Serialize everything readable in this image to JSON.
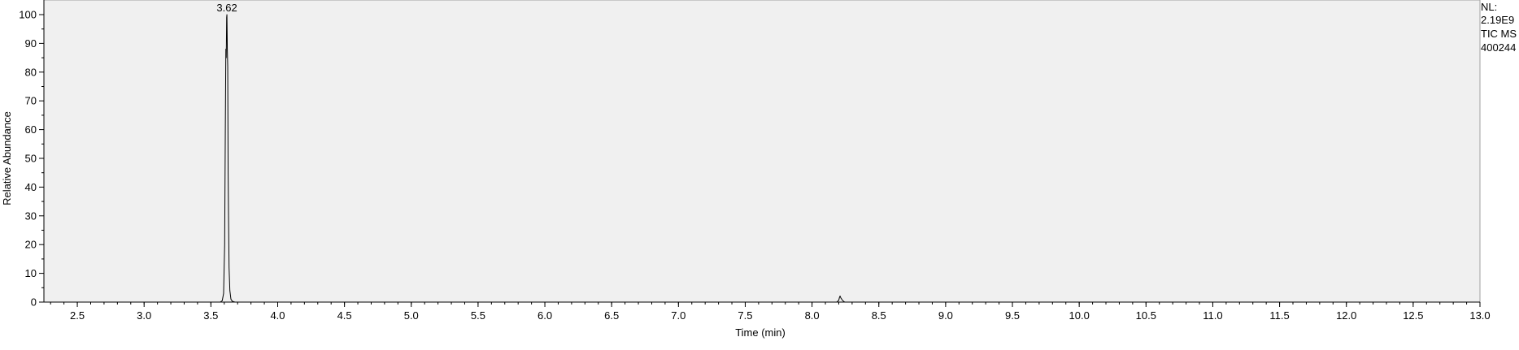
{
  "chart_data": {
    "type": "line",
    "title": "",
    "xlabel": "Time (min)",
    "ylabel": "Relative Abundance",
    "xlim": [
      2.25,
      13.0
    ],
    "ylim": [
      0,
      100
    ],
    "x_ticks": [
      2.5,
      3.0,
      3.5,
      4.0,
      4.5,
      5.0,
      5.5,
      6.0,
      6.5,
      7.0,
      7.5,
      8.0,
      8.5,
      9.0,
      9.5,
      10.0,
      10.5,
      11.0,
      11.5,
      12.0,
      12.5,
      13.0
    ],
    "x_tick_labels": [
      "2.5",
      "3.0",
      "3.5",
      "4.0",
      "4.5",
      "5.0",
      "5.5",
      "6.0",
      "6.5",
      "7.0",
      "7.5",
      "8.0",
      "8.5",
      "9.0",
      "9.5",
      "10.0",
      "10.5",
      "11.0",
      "11.5",
      "12.0",
      "12.5",
      "13.0"
    ],
    "y_ticks": [
      0,
      10,
      20,
      30,
      40,
      50,
      60,
      70,
      80,
      90,
      100
    ],
    "y_tick_labels": [
      "0",
      "10",
      "20",
      "30",
      "40",
      "50",
      "60",
      "70",
      "80",
      "90",
      "100"
    ],
    "grid": false,
    "colors": {
      "plot_background": "#f0f0f0",
      "trace": "#000000"
    },
    "series": [
      {
        "x": [
          2.25,
          3.57,
          3.585,
          3.595,
          3.603,
          3.608,
          3.612,
          3.615,
          3.618,
          3.62,
          3.623,
          3.626,
          3.629,
          3.632,
          3.636,
          3.642,
          3.65,
          3.66,
          3.68,
          8.17,
          8.185,
          8.2,
          8.205,
          8.21,
          8.215,
          8.23,
          8.245,
          13.0
        ],
        "y": [
          0,
          0,
          0.5,
          3,
          20,
          60,
          88,
          85,
          99,
          100,
          88,
          82,
          45,
          30,
          12,
          4,
          1,
          0.3,
          0,
          0,
          0,
          0.6,
          1.6,
          2.1,
          1.5,
          0.5,
          0,
          0
        ]
      }
    ],
    "annotations": [
      {
        "text": "3.62",
        "x": 3.62,
        "y": 100
      }
    ]
  },
  "side_info": [
    "NL:",
    "2.19E9",
    "TIC  MS",
    "400244"
  ]
}
